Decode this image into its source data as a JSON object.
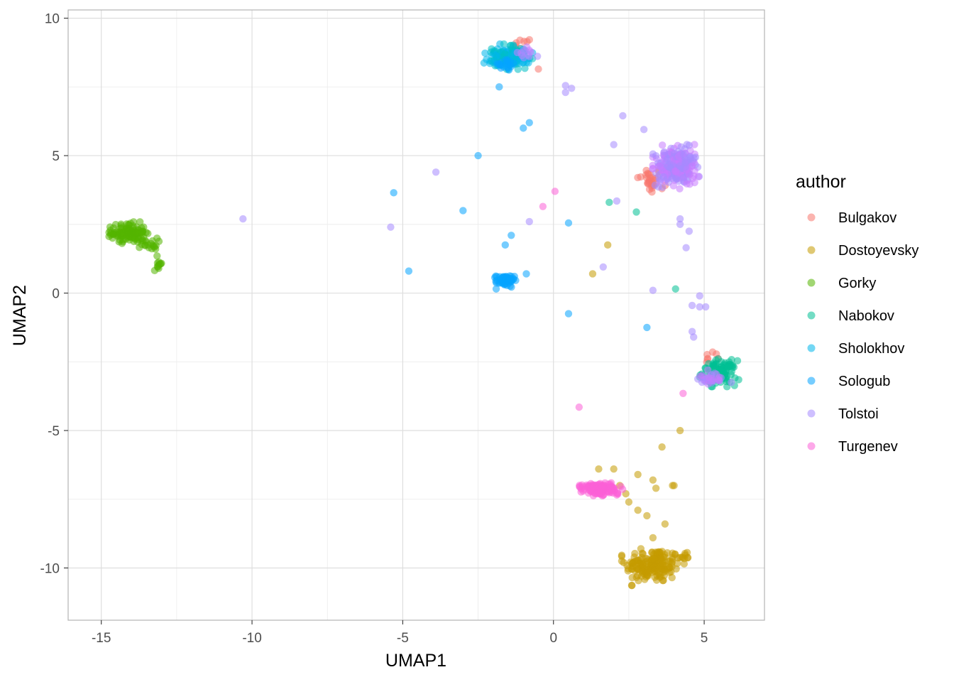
{
  "chart_data": {
    "type": "scatter",
    "xlabel": "UMAP1",
    "ylabel": "UMAP2",
    "xlim": [
      -16.1,
      7.0
    ],
    "ylim": [
      -11.9,
      10.3
    ],
    "xticks": [
      -15,
      -10,
      -5,
      0,
      5
    ],
    "yticks": [
      -10,
      -5,
      0,
      5,
      10
    ],
    "xtick_labels": [
      "-15",
      "-10",
      "-5",
      "0",
      "5"
    ],
    "ytick_labels": [
      "-10",
      "-5",
      "0",
      "5",
      "10"
    ],
    "grid": true,
    "legend": {
      "title": "author",
      "position": "right"
    },
    "series": [
      {
        "name": "Bulgakov",
        "color": "#F8766D",
        "clusters": [
          {
            "cx": 3.2,
            "cy": 4.1,
            "sx": 0.22,
            "sy": 0.25,
            "n": 30
          },
          {
            "cx": -1.1,
            "cy": 9.0,
            "sx": 0.2,
            "sy": 0.15,
            "n": 12
          },
          {
            "cx": 5.3,
            "cy": -2.4,
            "sx": 0.15,
            "sy": 0.15,
            "n": 8
          }
        ],
        "points": [
          [
            -0.5,
            8.15
          ],
          [
            3.6,
            3.8
          ]
        ]
      },
      {
        "name": "Dostoyevsky",
        "color": "#C49A00",
        "clusters": [
          {
            "cx": 3.3,
            "cy": -9.9,
            "sx": 0.45,
            "sy": 0.32,
            "n": 170
          },
          {
            "cx": 4.3,
            "cy": -9.6,
            "sx": 0.15,
            "sy": 0.07,
            "n": 10
          }
        ],
        "points": [
          [
            1.8,
            1.75
          ],
          [
            1.3,
            0.7
          ],
          [
            4.2,
            -5.0
          ],
          [
            3.6,
            -5.6
          ],
          [
            1.5,
            -6.4
          ],
          [
            2.0,
            -6.4
          ],
          [
            2.8,
            -6.6
          ],
          [
            2.2,
            -7.0
          ],
          [
            3.3,
            -6.8
          ],
          [
            3.4,
            -7.1
          ],
          [
            3.95,
            -7.0
          ],
          [
            4.0,
            -7.0
          ],
          [
            2.4,
            -7.3
          ],
          [
            2.5,
            -7.6
          ],
          [
            2.8,
            -7.9
          ],
          [
            3.1,
            -8.1
          ],
          [
            3.7,
            -8.4
          ],
          [
            3.3,
            -8.9
          ],
          [
            2.9,
            -9.3
          ]
        ]
      },
      {
        "name": "Gorky",
        "color": "#53B400",
        "clusters": [
          {
            "cx": -14.1,
            "cy": 2.2,
            "sx": 0.28,
            "sy": 0.17,
            "n": 110
          },
          {
            "cx": -13.5,
            "cy": 1.8,
            "sx": 0.18,
            "sy": 0.1,
            "n": 20
          },
          {
            "cx": -13.1,
            "cy": 1.0,
            "sx": 0.08,
            "sy": 0.1,
            "n": 10
          }
        ],
        "points": [
          [
            -13.2,
            1.6
          ],
          [
            -13.15,
            1.35
          ],
          [
            -13.3,
            1.9
          ]
        ]
      },
      {
        "name": "Nabokov",
        "color": "#00C094",
        "clusters": [
          {
            "cx": 5.5,
            "cy": -2.9,
            "sx": 0.28,
            "sy": 0.22,
            "n": 100
          }
        ],
        "points": [
          [
            1.85,
            3.3
          ],
          [
            2.75,
            2.95
          ],
          [
            4.05,
            0.15
          ]
        ]
      },
      {
        "name": "Sholokhov",
        "color": "#00B6EB",
        "alt_color": "#00BFC4",
        "clusters": [
          {
            "cx": -1.5,
            "cy": 8.6,
            "sx": 0.35,
            "sy": 0.2,
            "n": 140
          }
        ],
        "points": [
          [
            -2.0,
            8.4
          ]
        ]
      },
      {
        "name": "Sologub",
        "color": "#06A4FF",
        "clusters": [
          {
            "cx": -1.6,
            "cy": 0.45,
            "sx": 0.15,
            "sy": 0.1,
            "n": 60
          },
          {
            "cx": -1.6,
            "cy": 8.3,
            "sx": 0.25,
            "sy": 0.12,
            "n": 18
          }
        ],
        "points": [
          [
            -1.8,
            7.5
          ],
          [
            -1.0,
            6.0
          ],
          [
            -0.8,
            6.2
          ],
          [
            -2.5,
            5.0
          ],
          [
            -5.3,
            3.65
          ],
          [
            -3.0,
            3.0
          ],
          [
            -1.4,
            2.1
          ],
          [
            -1.6,
            1.75
          ],
          [
            -4.8,
            0.8
          ],
          [
            -0.9,
            0.7
          ],
          [
            0.5,
            2.55
          ],
          [
            0.5,
            -0.75
          ],
          [
            3.1,
            -1.25
          ],
          [
            -1.9,
            0.15
          ]
        ]
      },
      {
        "name": "Tolstoi",
        "color": "#A58AFF",
        "alt_color": "#C77CFF",
        "clusters": [
          {
            "cx": 4.1,
            "cy": 4.6,
            "sx": 0.35,
            "sy": 0.35,
            "n": 260
          },
          {
            "cx": 5.25,
            "cy": -3.1,
            "sx": 0.2,
            "sy": 0.13,
            "n": 30
          },
          {
            "cx": -0.9,
            "cy": 8.75,
            "sx": 0.2,
            "sy": 0.12,
            "n": 12
          }
        ],
        "points": [
          [
            -10.3,
            2.7
          ],
          [
            -5.4,
            2.4
          ],
          [
            -3.9,
            4.4
          ],
          [
            0.4,
            7.55
          ],
          [
            0.6,
            7.45
          ],
          [
            0.4,
            7.3
          ],
          [
            2.3,
            6.45
          ],
          [
            3.0,
            5.95
          ],
          [
            2.0,
            5.4
          ],
          [
            2.1,
            3.35
          ],
          [
            -0.8,
            2.6
          ],
          [
            1.65,
            0.95
          ],
          [
            3.3,
            0.1
          ],
          [
            4.2,
            2.7
          ],
          [
            4.2,
            2.5
          ],
          [
            4.5,
            2.25
          ],
          [
            4.4,
            1.65
          ],
          [
            4.85,
            -0.1
          ],
          [
            4.6,
            -0.45
          ],
          [
            4.85,
            -0.5
          ],
          [
            5.05,
            -0.5
          ],
          [
            4.6,
            -1.4
          ],
          [
            4.65,
            -1.6
          ],
          [
            5.9,
            -3.25
          ]
        ]
      },
      {
        "name": "Turgenev",
        "color": "#FB61D7",
        "clusters": [
          {
            "cx": 1.6,
            "cy": -7.1,
            "sx": 0.32,
            "sy": 0.12,
            "n": 120
          }
        ],
        "points": [
          [
            0.05,
            3.7
          ],
          [
            -0.35,
            3.15
          ],
          [
            4.3,
            -3.65
          ],
          [
            0.85,
            -4.15
          ]
        ]
      }
    ]
  }
}
